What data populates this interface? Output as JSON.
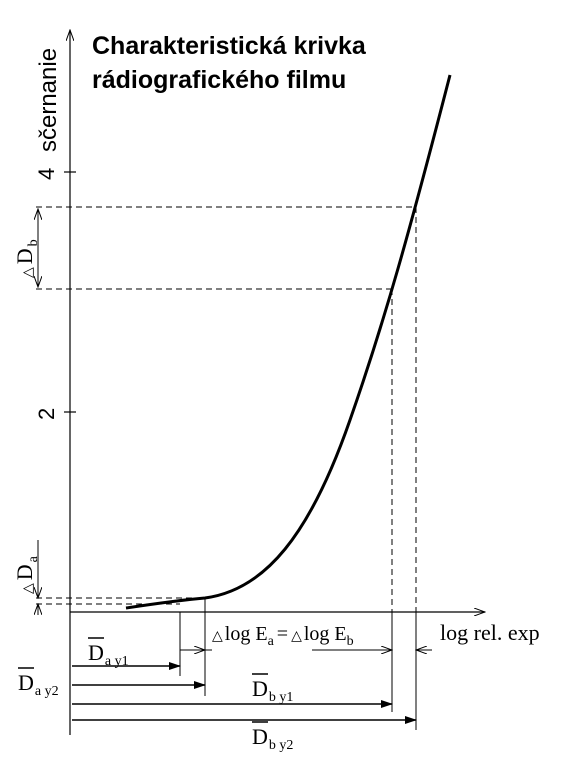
{
  "title_line1": "Charakteristická krivka",
  "title_line2": "rádiografického filmu",
  "y_axis_label": "sčernanie",
  "y_tick_4": "4",
  "y_tick_2": "2",
  "x_axis_label": "log rel. exp",
  "delta_symbol": "△",
  "delta_d_letter": "D",
  "sub_a": "a",
  "sub_b": "b",
  "eq_log": "log E",
  "eq_equals": "=",
  "d_letter": "D",
  "sub_ay1": "a y1",
  "sub_ay2": "a y2",
  "sub_by1": "b y1",
  "sub_by2": "b y2",
  "curve_type": "characteristic curve (density vs log relative exposure)"
}
